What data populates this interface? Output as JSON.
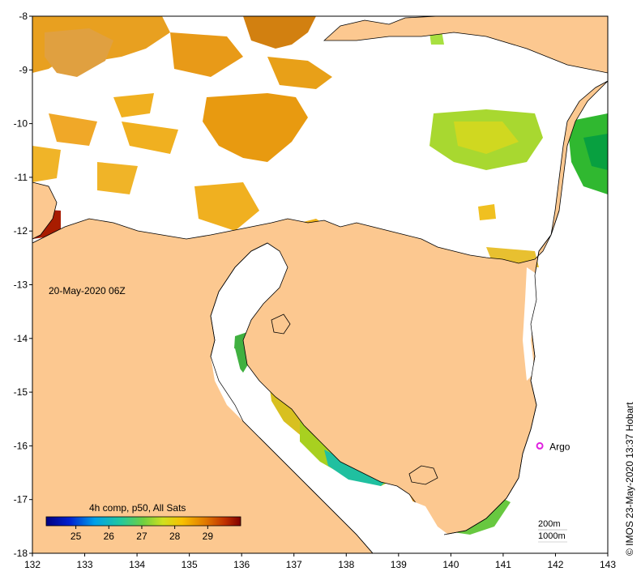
{
  "map": {
    "timestamp": "20-May-2020 06Z",
    "credit": "©  IMOS 23-May-2020 13:37 Hobart",
    "x_ticks": [
      "132",
      "133",
      "134",
      "135",
      "136",
      "137",
      "138",
      "139",
      "140",
      "141",
      "142",
      "143"
    ],
    "y_ticks": [
      "-8",
      "-9",
      "-10",
      "-11",
      "-12",
      "-13",
      "-14",
      "-15",
      "-16",
      "-17",
      "-18"
    ],
    "marker": {
      "label": "Argo",
      "lon": 141.7,
      "lat": -16.0,
      "color": "#e020e0"
    },
    "depth_contours": [
      "200m",
      "1000m"
    ],
    "colors": {
      "land": "#fcc890",
      "cloud": "#ffffff",
      "warm_sst": "#c86800",
      "mid_sst": "#e89a10",
      "cool_sst": "#8cd020"
    }
  },
  "colorbar": {
    "title": "4h comp, p50, All Sats",
    "ticks": [
      "25",
      "26",
      "27",
      "28",
      "29"
    ],
    "min": 24.1,
    "max": 30
  }
}
